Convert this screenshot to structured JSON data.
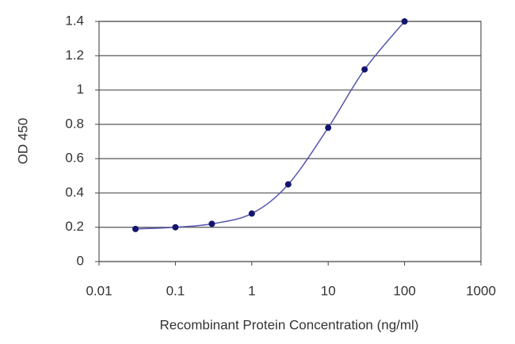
{
  "chart_data": {
    "type": "line",
    "x_label": "Recombinant Protein Concentration (ng/ml)",
    "y_label": "OD 450",
    "x": [
      0.03,
      0.1,
      0.3,
      1,
      3,
      10,
      30,
      100
    ],
    "values": [
      0.19,
      0.2,
      0.22,
      0.28,
      0.45,
      0.78,
      1.12,
      1.4
    ],
    "color": "#5555b0",
    "marker_color": "#14146e",
    "x_log": true,
    "xlim": [
      0.01,
      1000
    ],
    "xticks": [
      0.01,
      0.1,
      1,
      10,
      100,
      1000
    ],
    "ylim": [
      0,
      1.4
    ],
    "yticks": [
      0,
      0.2,
      0.4,
      0.6,
      0.8,
      1,
      1.2,
      1.4
    ],
    "grid": true
  }
}
